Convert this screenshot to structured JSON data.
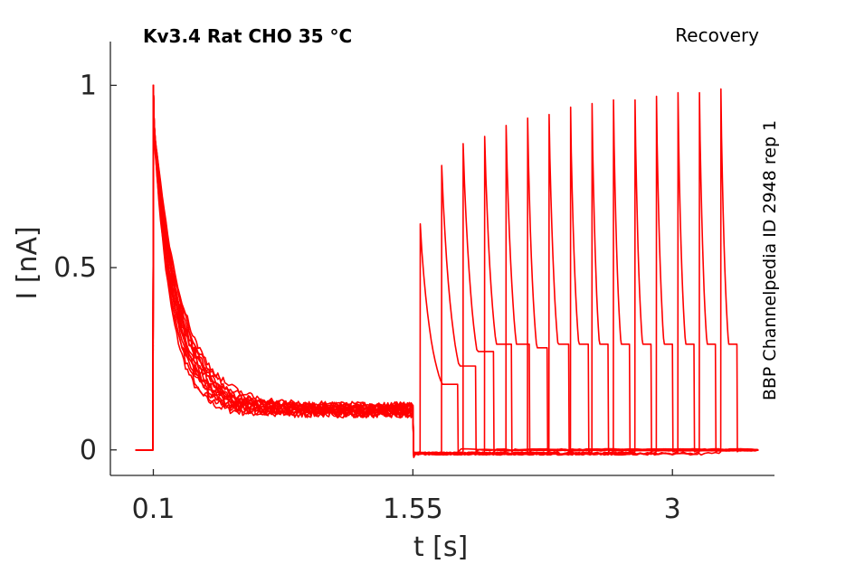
{
  "chart_data": {
    "type": "line",
    "title": "Kv3.4  Rat  CHO  35 °C",
    "protocol_label": "Recovery",
    "side_label": "BBP Channelpedia ID 2948 rep 1",
    "xlabel": "t [s]",
    "ylabel": "I [nA]",
    "x_ticks": [
      {
        "value": 0.1,
        "label": "0.1"
      },
      {
        "value": 1.55,
        "label": "1.55"
      },
      {
        "value": 3.0,
        "label": "3"
      }
    ],
    "y_ticks": [
      {
        "value": 0,
        "label": "0"
      },
      {
        "value": 0.5,
        "label": "0.5"
      },
      {
        "value": 1,
        "label": "1"
      }
    ],
    "xlim": [
      -0.14,
      3.57
    ],
    "ylim": [
      -0.07,
      1.12
    ],
    "line_color": "#ff0000",
    "grid": false,
    "sweep_count": 15,
    "prepulse": {
      "start_s": 0.1,
      "end_s": 1.55,
      "peak_nA": 1.0,
      "initial_nA": 0.9,
      "late_nA": 0.11,
      "tau_min_s": 0.1,
      "tau_max_s": 0.16
    },
    "test_pulses": [
      {
        "start_s": 1.59,
        "peak_nA": 0.62,
        "end_s": 1.8,
        "end_nA": 0.18
      },
      {
        "start_s": 1.71,
        "peak_nA": 0.78,
        "end_s": 1.9,
        "end_nA": 0.23
      },
      {
        "start_s": 1.83,
        "peak_nA": 0.84,
        "end_s": 2.0,
        "end_nA": 0.27
      },
      {
        "start_s": 1.95,
        "peak_nA": 0.86,
        "end_s": 2.1,
        "end_nA": 0.29
      },
      {
        "start_s": 2.07,
        "peak_nA": 0.89,
        "end_s": 2.2,
        "end_nA": 0.29
      },
      {
        "start_s": 2.19,
        "peak_nA": 0.91,
        "end_s": 2.3,
        "end_nA": 0.28
      },
      {
        "start_s": 2.31,
        "peak_nA": 0.92,
        "end_s": 2.42,
        "end_nA": 0.29
      },
      {
        "start_s": 2.43,
        "peak_nA": 0.94,
        "end_s": 2.53,
        "end_nA": 0.29
      },
      {
        "start_s": 2.55,
        "peak_nA": 0.95,
        "end_s": 2.64,
        "end_nA": 0.29
      },
      {
        "start_s": 2.67,
        "peak_nA": 0.96,
        "end_s": 2.76,
        "end_nA": 0.29
      },
      {
        "start_s": 2.79,
        "peak_nA": 0.96,
        "end_s": 2.88,
        "end_nA": 0.29
      },
      {
        "start_s": 2.91,
        "peak_nA": 0.97,
        "end_s": 3.0,
        "end_nA": 0.29
      },
      {
        "start_s": 3.03,
        "peak_nA": 0.98,
        "end_s": 3.12,
        "end_nA": 0.29
      },
      {
        "start_s": 3.15,
        "peak_nA": 0.98,
        "end_s": 3.24,
        "end_nA": 0.29
      },
      {
        "start_s": 3.27,
        "peak_nA": 0.99,
        "end_s": 3.36,
        "end_nA": 0.29
      }
    ],
    "baseline_start_s": 0.0,
    "trace_end_s": 3.48
  }
}
